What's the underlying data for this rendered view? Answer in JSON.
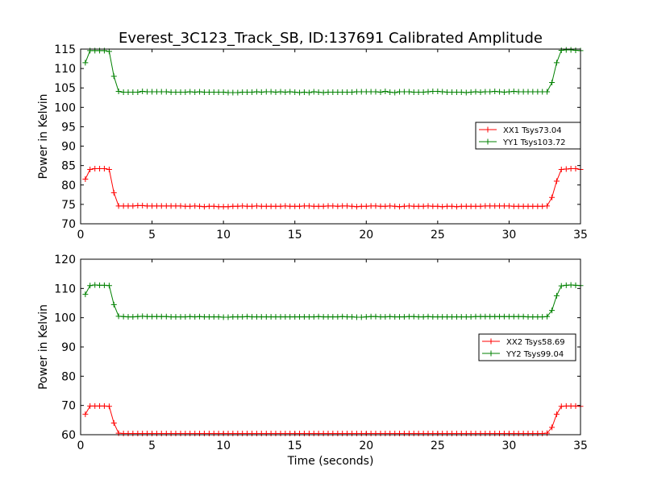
{
  "figure": {
    "title": "Everest_3C123_Track_SB, ID:137691 Calibrated Amplitude",
    "xlabel": "Time (seconds)"
  },
  "chart_data": [
    {
      "type": "line",
      "ylabel": "Power in Kelvin",
      "xlim": [
        0,
        35
      ],
      "ylim": [
        70,
        115
      ],
      "xticks": [
        0,
        5,
        10,
        15,
        20,
        25,
        30,
        35
      ],
      "yticks": [
        70,
        75,
        80,
        85,
        90,
        95,
        100,
        105,
        110,
        115
      ],
      "legend": {
        "location": "center-right",
        "position": "upper"
      },
      "x": [
        0.33,
        0.66,
        1.0,
        1.33,
        1.66,
        2.0,
        2.33,
        2.66,
        3.0,
        3.33,
        3.66,
        4.0,
        4.33,
        4.66,
        5.0,
        5.33,
        5.66,
        6.0,
        6.33,
        6.66,
        7.0,
        7.33,
        7.66,
        8.0,
        8.33,
        8.66,
        9.0,
        9.33,
        9.66,
        10.0,
        10.33,
        10.66,
        11.0,
        11.33,
        11.66,
        12.0,
        12.33,
        12.66,
        13.0,
        13.33,
        13.66,
        14.0,
        14.33,
        14.66,
        15.0,
        15.33,
        15.66,
        16.0,
        16.33,
        16.66,
        17.0,
        17.33,
        17.66,
        18.0,
        18.33,
        18.66,
        19.0,
        19.33,
        19.66,
        20.0,
        20.33,
        20.66,
        21.0,
        21.33,
        21.66,
        22.0,
        22.33,
        22.66,
        23.0,
        23.33,
        23.66,
        24.0,
        24.33,
        24.66,
        25.0,
        25.33,
        25.66,
        26.0,
        26.33,
        26.66,
        27.0,
        27.33,
        27.66,
        28.0,
        28.33,
        28.66,
        29.0,
        29.33,
        29.66,
        30.0,
        30.33,
        30.66,
        31.0,
        31.33,
        31.66,
        32.0,
        32.33,
        32.66,
        33.0,
        33.33,
        33.66,
        34.0,
        34.33,
        34.66,
        35.0
      ],
      "series": [
        {
          "name": "XX1 Tsys73.04",
          "color": "#ff0000",
          "values": [
            81.5,
            84.0,
            84.2,
            84.2,
            84.2,
            84.0,
            78.0,
            74.6,
            74.6,
            74.6,
            74.6,
            74.7,
            74.7,
            74.6,
            74.6,
            74.6,
            74.6,
            74.6,
            74.6,
            74.6,
            74.6,
            74.5,
            74.5,
            74.6,
            74.5,
            74.4,
            74.5,
            74.5,
            74.4,
            74.4,
            74.4,
            74.5,
            74.5,
            74.6,
            74.5,
            74.5,
            74.6,
            74.5,
            74.5,
            74.5,
            74.5,
            74.5,
            74.6,
            74.5,
            74.5,
            74.5,
            74.6,
            74.6,
            74.5,
            74.5,
            74.5,
            74.6,
            74.6,
            74.5,
            74.6,
            74.6,
            74.5,
            74.4,
            74.5,
            74.5,
            74.6,
            74.6,
            74.5,
            74.5,
            74.6,
            74.5,
            74.4,
            74.5,
            74.6,
            74.5,
            74.5,
            74.5,
            74.6,
            74.5,
            74.5,
            74.4,
            74.5,
            74.5,
            74.4,
            74.5,
            74.5,
            74.5,
            74.5,
            74.5,
            74.6,
            74.6,
            74.6,
            74.6,
            74.6,
            74.6,
            74.5,
            74.5,
            74.5,
            74.5,
            74.5,
            74.5,
            74.5,
            74.6,
            76.8,
            81.0,
            84.0,
            84.1,
            84.2,
            84.2,
            84.0
          ]
        },
        {
          "name": "YY1 Tsys103.72",
          "color": "#008000",
          "values": [
            111.5,
            114.6,
            114.6,
            114.6,
            114.6,
            114.4,
            108.0,
            104.1,
            103.9,
            103.9,
            103.9,
            103.9,
            104.1,
            104.0,
            104.0,
            104.0,
            104.0,
            104.0,
            103.9,
            103.9,
            103.9,
            103.9,
            104.0,
            103.9,
            104.0,
            103.9,
            103.9,
            103.9,
            103.9,
            103.9,
            103.8,
            103.8,
            103.8,
            103.9,
            103.9,
            103.9,
            104.0,
            103.9,
            104.0,
            104.0,
            103.9,
            104.0,
            103.9,
            104.0,
            103.9,
            103.8,
            103.9,
            103.8,
            104.0,
            103.9,
            103.8,
            103.9,
            103.9,
            103.9,
            103.9,
            103.9,
            103.9,
            104.0,
            104.0,
            104.0,
            104.0,
            104.0,
            103.9,
            104.1,
            103.9,
            103.8,
            104.0,
            104.0,
            104.0,
            103.9,
            103.9,
            103.9,
            104.0,
            104.1,
            104.1,
            104.0,
            103.9,
            103.9,
            103.9,
            103.9,
            103.8,
            103.9,
            104.0,
            103.9,
            104.0,
            104.0,
            104.1,
            104.0,
            103.9,
            104.0,
            104.1,
            104.0,
            104.0,
            104.0,
            104.0,
            104.0,
            104.0,
            104.0,
            106.4,
            111.5,
            114.7,
            114.8,
            114.8,
            114.7,
            114.6
          ]
        }
      ]
    },
    {
      "type": "line",
      "ylabel": "Power in Kelvin",
      "xlabel": "Time (seconds)",
      "xlim": [
        0,
        35
      ],
      "ylim": [
        60,
        120
      ],
      "xticks": [
        0,
        5,
        10,
        15,
        20,
        25,
        30,
        35
      ],
      "yticks": [
        60,
        70,
        80,
        90,
        100,
        110,
        120
      ],
      "legend": {
        "location": "center-right",
        "position": "lower"
      },
      "x": [
        0.33,
        0.66,
        1.0,
        1.33,
        1.66,
        2.0,
        2.33,
        2.66,
        3.0,
        3.33,
        3.66,
        4.0,
        4.33,
        4.66,
        5.0,
        5.33,
        5.66,
        6.0,
        6.33,
        6.66,
        7.0,
        7.33,
        7.66,
        8.0,
        8.33,
        8.66,
        9.0,
        9.33,
        9.66,
        10.0,
        10.33,
        10.66,
        11.0,
        11.33,
        11.66,
        12.0,
        12.33,
        12.66,
        13.0,
        13.33,
        13.66,
        14.0,
        14.33,
        14.66,
        15.0,
        15.33,
        15.66,
        16.0,
        16.33,
        16.66,
        17.0,
        17.33,
        17.66,
        18.0,
        18.33,
        18.66,
        19.0,
        19.33,
        19.66,
        20.0,
        20.33,
        20.66,
        21.0,
        21.33,
        21.66,
        22.0,
        22.33,
        22.66,
        23.0,
        23.33,
        23.66,
        24.0,
        24.33,
        24.66,
        25.0,
        25.33,
        25.66,
        26.0,
        26.33,
        26.66,
        27.0,
        27.33,
        27.66,
        28.0,
        28.33,
        28.66,
        29.0,
        29.33,
        29.66,
        30.0,
        30.33,
        30.66,
        31.0,
        31.33,
        31.66,
        32.0,
        32.33,
        32.66,
        33.0,
        33.33,
        33.66,
        34.0,
        34.33,
        34.66,
        35.0
      ],
      "series": [
        {
          "name": "XX2 Tsys58.69",
          "color": "#ff0000",
          "values": [
            67.0,
            69.8,
            69.8,
            69.8,
            69.8,
            69.7,
            64.0,
            60.5,
            60.4,
            60.4,
            60.4,
            60.4,
            60.4,
            60.4,
            60.4,
            60.4,
            60.4,
            60.4,
            60.4,
            60.4,
            60.4,
            60.4,
            60.4,
            60.4,
            60.4,
            60.4,
            60.4,
            60.4,
            60.4,
            60.4,
            60.4,
            60.4,
            60.4,
            60.4,
            60.4,
            60.4,
            60.4,
            60.4,
            60.4,
            60.4,
            60.4,
            60.4,
            60.4,
            60.4,
            60.4,
            60.4,
            60.4,
            60.4,
            60.4,
            60.4,
            60.4,
            60.4,
            60.4,
            60.4,
            60.4,
            60.4,
            60.4,
            60.4,
            60.4,
            60.4,
            60.4,
            60.4,
            60.4,
            60.4,
            60.4,
            60.4,
            60.4,
            60.4,
            60.4,
            60.4,
            60.4,
            60.4,
            60.4,
            60.4,
            60.4,
            60.4,
            60.4,
            60.4,
            60.4,
            60.4,
            60.4,
            60.4,
            60.4,
            60.4,
            60.4,
            60.4,
            60.4,
            60.4,
            60.4,
            60.4,
            60.4,
            60.4,
            60.4,
            60.4,
            60.4,
            60.4,
            60.4,
            60.5,
            62.5,
            67.0,
            69.7,
            69.8,
            69.8,
            69.8,
            69.7
          ]
        },
        {
          "name": "YY2 Tsys99.04",
          "color": "#008000",
          "values": [
            108.0,
            111.0,
            111.2,
            111.1,
            111.1,
            111.0,
            104.5,
            100.5,
            100.4,
            100.3,
            100.3,
            100.4,
            100.5,
            100.4,
            100.4,
            100.4,
            100.4,
            100.4,
            100.3,
            100.3,
            100.3,
            100.3,
            100.4,
            100.3,
            100.4,
            100.3,
            100.3,
            100.3,
            100.3,
            100.2,
            100.2,
            100.3,
            100.3,
            100.3,
            100.4,
            100.3,
            100.3,
            100.3,
            100.3,
            100.3,
            100.3,
            100.3,
            100.3,
            100.3,
            100.3,
            100.3,
            100.3,
            100.3,
            100.3,
            100.4,
            100.3,
            100.3,
            100.3,
            100.3,
            100.4,
            100.3,
            100.3,
            100.2,
            100.2,
            100.3,
            100.4,
            100.4,
            100.3,
            100.3,
            100.4,
            100.3,
            100.3,
            100.3,
            100.4,
            100.4,
            100.3,
            100.3,
            100.4,
            100.3,
            100.3,
            100.3,
            100.3,
            100.3,
            100.3,
            100.3,
            100.3,
            100.3,
            100.4,
            100.4,
            100.4,
            100.4,
            100.4,
            100.4,
            100.4,
            100.4,
            100.4,
            100.4,
            100.4,
            100.3,
            100.3,
            100.3,
            100.3,
            100.4,
            102.5,
            107.5,
            110.9,
            111.1,
            111.2,
            111.1,
            111.0
          ]
        }
      ]
    }
  ]
}
